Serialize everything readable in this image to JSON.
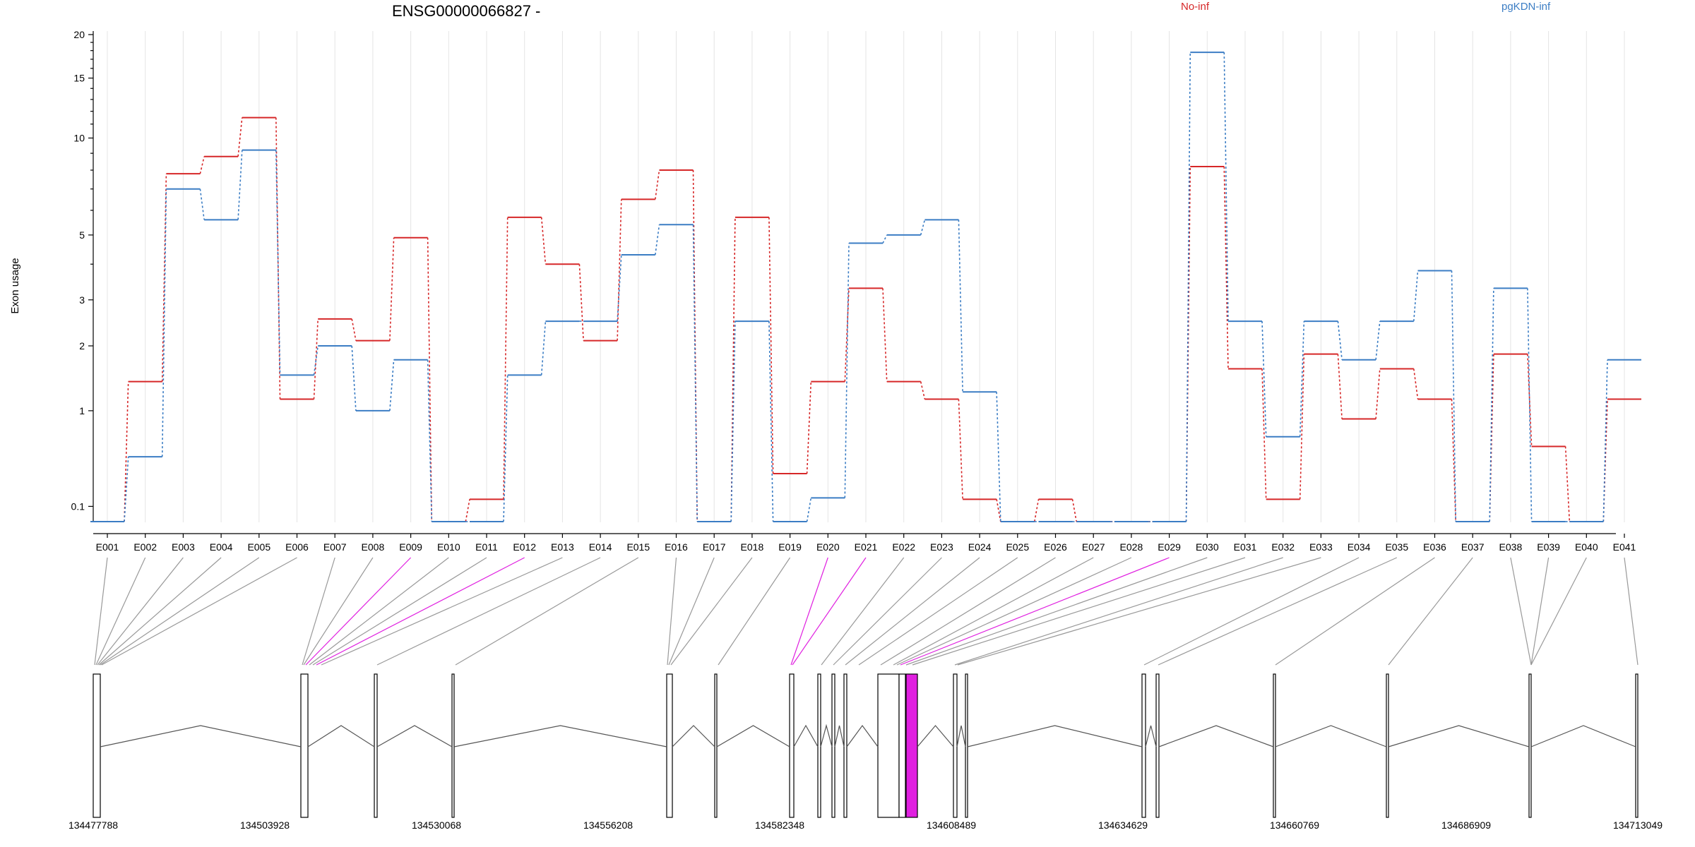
{
  "chart_data": {
    "type": "line",
    "title": "ENSG00000066827 -",
    "ylabel": "Exon usage",
    "yscale": "log1p",
    "yticks": [
      0.1,
      1,
      2,
      3,
      5,
      10,
      15,
      20
    ],
    "ytick_labels": [
      "0.1",
      "1",
      "2",
      "3",
      "5",
      "10",
      "15",
      "20"
    ],
    "ylim": [
      0,
      20
    ],
    "grid": "vertical",
    "legend_placement": "top",
    "categories": [
      "E001",
      "E002",
      "E003",
      "E004",
      "E005",
      "E006",
      "E007",
      "E008",
      "E009",
      "E010",
      "E011",
      "E012",
      "E013",
      "E014",
      "E015",
      "E016",
      "E017",
      "E018",
      "E019",
      "E020",
      "E021",
      "E022",
      "E023",
      "E024",
      "E025",
      "E026",
      "E027",
      "E028",
      "E029",
      "E030",
      "E031",
      "E032",
      "E033",
      "E034",
      "E035",
      "E036",
      "E037",
      "E038",
      "E039",
      "E040",
      "E041"
    ],
    "series": [
      {
        "name": "No-inf",
        "color": "#d62728",
        "values": [
          0,
          1.4,
          7.8,
          8.8,
          11.5,
          1.15,
          2.55,
          2.1,
          4.9,
          0,
          0.15,
          5.7,
          4.0,
          2.1,
          6.5,
          8.0,
          0,
          5.7,
          0.35,
          1.4,
          3.3,
          1.4,
          1.15,
          0.15,
          0,
          0.15,
          0,
          0,
          0,
          8.2,
          1.6,
          0.15,
          1.85,
          0.9,
          1.6,
          1.15,
          0,
          1.85,
          0.6,
          0,
          1.15
        ]
      },
      {
        "name": "pgKDN-inf",
        "color": "#3b7dc4",
        "values": [
          0,
          0.5,
          7.0,
          5.6,
          9.2,
          1.5,
          2.0,
          1.0,
          1.75,
          0,
          0,
          1.5,
          2.5,
          2.5,
          4.3,
          5.4,
          0,
          2.5,
          0,
          0.16,
          4.7,
          5.0,
          5.6,
          1.25,
          0,
          0,
          0,
          0,
          0,
          17.8,
          2.5,
          0.7,
          2.5,
          1.75,
          2.5,
          3.8,
          0,
          3.3,
          0,
          0,
          1.75
        ]
      }
    ],
    "gene_model": {
      "genomic_ticks": [
        "134477788",
        "134503928",
        "134530068",
        "134556208",
        "134582348",
        "134608489",
        "134634629",
        "134660769",
        "134686909",
        "134713049"
      ],
      "highlight_color": "#e020e0",
      "highlighted_exons": [
        "E009",
        "E012",
        "E020",
        "E021",
        "E029"
      ]
    }
  }
}
